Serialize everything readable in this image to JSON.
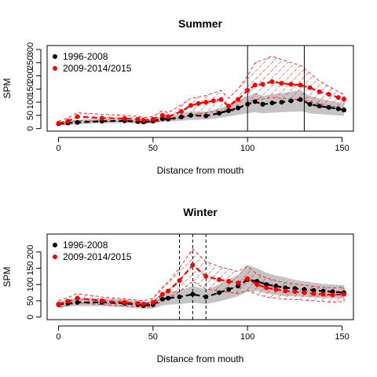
{
  "chart_data": [
    {
      "type": "line",
      "title": "Summer",
      "xlabel": "Distance from mouth",
      "ylabel": "SPM",
      "xlim": [
        -6,
        156
      ],
      "ylim": [
        -10,
        315
      ],
      "x_ticks": [
        0,
        50,
        100,
        150
      ],
      "y_ticks": [
        0,
        50,
        100,
        150,
        200,
        250,
        300
      ],
      "legend_position": "top-left",
      "vlines": [
        {
          "x": 100,
          "style": "solid"
        },
        {
          "x": 130,
          "style": "solid"
        }
      ],
      "series": [
        {
          "name": "1996-2008",
          "color": "#000000",
          "x": [
            0,
            5,
            10,
            23,
            35,
            42,
            45,
            50,
            55,
            58,
            65,
            70,
            78,
            85,
            90,
            95,
            100,
            104,
            108,
            113,
            118,
            123,
            128,
            133,
            138,
            143,
            148,
            151
          ],
          "y": [
            18,
            21,
            23,
            28,
            29,
            26,
            25,
            28,
            37,
            36,
            44,
            50,
            48,
            58,
            68,
            78,
            92,
            102,
            92,
            97,
            100,
            105,
            110,
            92,
            85,
            80,
            75,
            70
          ],
          "band_low": [
            12,
            14,
            16,
            20,
            22,
            18,
            18,
            20,
            25,
            26,
            30,
            32,
            34,
            40,
            46,
            52,
            58,
            62,
            58,
            60,
            62,
            64,
            65,
            58,
            55,
            52,
            50,
            48
          ],
          "band_high": [
            26,
            30,
            32,
            38,
            38,
            35,
            34,
            38,
            50,
            48,
            58,
            66,
            64,
            76,
            90,
            104,
            122,
            136,
            124,
            130,
            134,
            140,
            146,
            124,
            114,
            106,
            100,
            94
          ]
        },
        {
          "name": "2009-2014/2015",
          "color": "#ff0000",
          "x": [
            0,
            5,
            10,
            23,
            35,
            42,
            45,
            50,
            55,
            58,
            65,
            70,
            74,
            78,
            82,
            86,
            90,
            95,
            100,
            104,
            108,
            113,
            118,
            123,
            128,
            133,
            138,
            143,
            148,
            151
          ],
          "y": [
            20,
            28,
            45,
            40,
            38,
            35,
            32,
            35,
            50,
            45,
            65,
            88,
            95,
            100,
            105,
            110,
            85,
            110,
            145,
            165,
            168,
            178,
            172,
            168,
            165,
            155,
            140,
            130,
            118,
            112
          ],
          "band_low": [
            14,
            18,
            30,
            28,
            26,
            24,
            22,
            24,
            30,
            30,
            40,
            50,
            55,
            60,
            64,
            68,
            60,
            75,
            100,
            110,
            112,
            118,
            115,
            112,
            110,
            102,
            94,
            88,
            80,
            76
          ],
          "band_high": [
            28,
            40,
            60,
            54,
            50,
            46,
            42,
            46,
            68,
            60,
            90,
            115,
            120,
            125,
            135,
            145,
            115,
            150,
            200,
            250,
            260,
            275,
            262,
            250,
            240,
            210,
            180,
            160,
            140,
            130
          ]
        }
      ]
    },
    {
      "type": "line",
      "title": "Winter",
      "xlabel": "Distance from mouth",
      "ylabel": "SPM",
      "xlim": [
        -6,
        156
      ],
      "ylim": [
        -8,
        255
      ],
      "x_ticks": [
        0,
        50,
        100,
        150
      ],
      "y_ticks": [
        0,
        50,
        100,
        150,
        200
      ],
      "legend_position": "top-left",
      "vlines": [
        {
          "x": 64,
          "style": "dashed"
        },
        {
          "x": 71,
          "style": "dashed"
        },
        {
          "x": 78,
          "style": "dashed"
        }
      ],
      "series": [
        {
          "name": "1996-2008",
          "color": "#000000",
          "x": [
            0,
            5,
            10,
            23,
            35,
            42,
            45,
            50,
            55,
            58,
            64,
            71,
            78,
            85,
            90,
            95,
            100,
            105,
            110,
            115,
            120,
            125,
            130,
            135,
            140,
            145,
            151
          ],
          "y": [
            38,
            42,
            45,
            45,
            42,
            38,
            35,
            38,
            55,
            58,
            62,
            70,
            62,
            75,
            85,
            95,
            115,
            110,
            100,
            95,
            90,
            88,
            85,
            82,
            80,
            78,
            75
          ],
          "band_low": [
            28,
            32,
            34,
            34,
            30,
            27,
            25,
            26,
            36,
            38,
            40,
            44,
            40,
            48,
            56,
            64,
            78,
            80,
            72,
            68,
            64,
            64,
            62,
            60,
            58,
            58,
            56
          ],
          "band_high": [
            48,
            52,
            58,
            58,
            54,
            50,
            46,
            50,
            74,
            78,
            82,
            96,
            84,
            100,
            116,
            128,
            160,
            150,
            136,
            128,
            122,
            114,
            110,
            106,
            102,
            100,
            98
          ]
        },
        {
          "name": "2009-2014/2015",
          "color": "#ff0000",
          "x": [
            0,
            5,
            10,
            23,
            35,
            42,
            45,
            50,
            55,
            58,
            64,
            71,
            78,
            85,
            90,
            95,
            100,
            105,
            110,
            115,
            120,
            125,
            130,
            135,
            140,
            145,
            151
          ],
          "y": [
            40,
            48,
            58,
            50,
            45,
            42,
            40,
            45,
            70,
            80,
            112,
            160,
            125,
            115,
            110,
            105,
            118,
            100,
            90,
            85,
            80,
            78,
            75,
            72,
            70,
            68,
            70
          ],
          "band_low": [
            30,
            36,
            44,
            38,
            34,
            32,
            30,
            32,
            50,
            56,
            78,
            110,
            86,
            80,
            76,
            72,
            82,
            70,
            62,
            58,
            55,
            54,
            52,
            50,
            48,
            46,
            48
          ],
          "band_high": [
            50,
            60,
            72,
            62,
            56,
            52,
            50,
            58,
            92,
            108,
            150,
            210,
            170,
            155,
            148,
            140,
            156,
            132,
            120,
            112,
            106,
            102,
            98,
            94,
            92,
            90,
            92
          ]
        }
      ]
    }
  ]
}
